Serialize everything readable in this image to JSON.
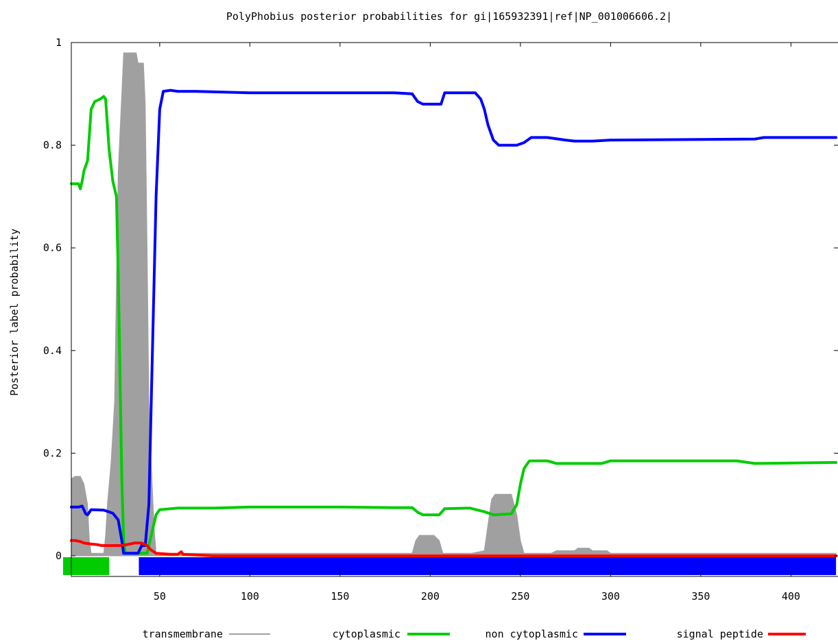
{
  "chart_data": {
    "type": "area",
    "title": "PolyPhobius posterior probabilities for gi|165932391|ref|NP_001006606.2|",
    "xlabel": "",
    "ylabel": "Posterior label probability",
    "xlim": [
      1,
      425
    ],
    "ylim": [
      -0.04,
      1
    ],
    "x_ticks": [
      50,
      100,
      150,
      200,
      250,
      300,
      350,
      400
    ],
    "y_ticks": [
      0,
      0.2,
      0.4,
      0.6,
      0.8,
      1
    ],
    "x_tick_labels": [
      "50",
      "100",
      "150",
      "200",
      "250",
      "300",
      "350",
      "400"
    ],
    "y_tick_labels": [
      "0",
      "0.2",
      "0.4",
      "0.6",
      "0.8",
      "1"
    ],
    "legend_position": "bottom",
    "series": [
      {
        "name": "transmembrane",
        "style": "filled",
        "color": "#a0a0a0",
        "points": [
          [
            1,
            0.15
          ],
          [
            3,
            0.155
          ],
          [
            6,
            0.155
          ],
          [
            8,
            0.14
          ],
          [
            10,
            0.1
          ],
          [
            11,
            0.03
          ],
          [
            12,
            0.005
          ],
          [
            19,
            0.005
          ],
          [
            20,
            0.04
          ],
          [
            21,
            0.1
          ],
          [
            23,
            0.18
          ],
          [
            25,
            0.3
          ],
          [
            27,
            0.75
          ],
          [
            29,
            0.9
          ],
          [
            30,
            0.98
          ],
          [
            37,
            0.98
          ],
          [
            38,
            0.96
          ],
          [
            41,
            0.96
          ],
          [
            42,
            0.88
          ],
          [
            43,
            0.6
          ],
          [
            44,
            0.3
          ],
          [
            45,
            0.2
          ],
          [
            47,
            0.05
          ],
          [
            48,
            0.005
          ],
          [
            190,
            0.005
          ],
          [
            192,
            0.03
          ],
          [
            194,
            0.04
          ],
          [
            202,
            0.04
          ],
          [
            205,
            0.03
          ],
          [
            207,
            0.005
          ],
          [
            223,
            0.005
          ],
          [
            230,
            0.01
          ],
          [
            232,
            0.06
          ],
          [
            234,
            0.11
          ],
          [
            236,
            0.12
          ],
          [
            245,
            0.12
          ],
          [
            248,
            0.08
          ],
          [
            250,
            0.03
          ],
          [
            252,
            0.005
          ],
          [
            267,
            0.005
          ],
          [
            270,
            0.01
          ],
          [
            280,
            0.01
          ],
          [
            282,
            0.015
          ],
          [
            288,
            0.015
          ],
          [
            290,
            0.01
          ],
          [
            298,
            0.01
          ],
          [
            300,
            0.005
          ],
          [
            425,
            0.005
          ]
        ]
      },
      {
        "name": "cytoplasmic",
        "style": "line",
        "color": "#00cc00",
        "points": [
          [
            1,
            0.725
          ],
          [
            5,
            0.725
          ],
          [
            6,
            0.715
          ],
          [
            7,
            0.73
          ],
          [
            8,
            0.75
          ],
          [
            10,
            0.77
          ],
          [
            12,
            0.87
          ],
          [
            14,
            0.885
          ],
          [
            17,
            0.89
          ],
          [
            19,
            0.895
          ],
          [
            20,
            0.89
          ],
          [
            21,
            0.84
          ],
          [
            22,
            0.79
          ],
          [
            24,
            0.73
          ],
          [
            26,
            0.7
          ],
          [
            27,
            0.55
          ],
          [
            28,
            0.35
          ],
          [
            29,
            0.15
          ],
          [
            30,
            0.03
          ],
          [
            31,
            0.005
          ],
          [
            43,
            0.005
          ],
          [
            46,
            0.05
          ],
          [
            48,
            0.08
          ],
          [
            50,
            0.09
          ],
          [
            60,
            0.093
          ],
          [
            80,
            0.093
          ],
          [
            100,
            0.095
          ],
          [
            150,
            0.095
          ],
          [
            180,
            0.094
          ],
          [
            190,
            0.094
          ],
          [
            193,
            0.085
          ],
          [
            196,
            0.08
          ],
          [
            205,
            0.08
          ],
          [
            208,
            0.092
          ],
          [
            222,
            0.093
          ],
          [
            230,
            0.086
          ],
          [
            235,
            0.08
          ],
          [
            245,
            0.082
          ],
          [
            248,
            0.1
          ],
          [
            250,
            0.14
          ],
          [
            252,
            0.17
          ],
          [
            255,
            0.185
          ],
          [
            265,
            0.185
          ],
          [
            270,
            0.18
          ],
          [
            285,
            0.18
          ],
          [
            295,
            0.18
          ],
          [
            300,
            0.185
          ],
          [
            370,
            0.185
          ],
          [
            380,
            0.18
          ],
          [
            425,
            0.182
          ]
        ]
      },
      {
        "name": "non cytoplasmic",
        "style": "line",
        "color": "#0000ff",
        "points": [
          [
            1,
            0.095
          ],
          [
            5,
            0.095
          ],
          [
            7,
            0.097
          ],
          [
            9,
            0.082
          ],
          [
            10,
            0.08
          ],
          [
            12,
            0.09
          ],
          [
            19,
            0.089
          ],
          [
            24,
            0.083
          ],
          [
            27,
            0.07
          ],
          [
            29,
            0.03
          ],
          [
            30,
            0.005
          ],
          [
            38,
            0.005
          ],
          [
            40,
            0.02
          ],
          [
            42,
            0.02
          ],
          [
            44,
            0.1
          ],
          [
            46,
            0.4
          ],
          [
            48,
            0.7
          ],
          [
            50,
            0.87
          ],
          [
            52,
            0.905
          ],
          [
            56,
            0.907
          ],
          [
            60,
            0.905
          ],
          [
            70,
            0.905
          ],
          [
            100,
            0.902
          ],
          [
            150,
            0.902
          ],
          [
            180,
            0.902
          ],
          [
            190,
            0.9
          ],
          [
            193,
            0.885
          ],
          [
            196,
            0.88
          ],
          [
            206,
            0.88
          ],
          [
            208,
            0.902
          ],
          [
            215,
            0.902
          ],
          [
            225,
            0.902
          ],
          [
            228,
            0.89
          ],
          [
            230,
            0.87
          ],
          [
            232,
            0.84
          ],
          [
            235,
            0.81
          ],
          [
            238,
            0.8
          ],
          [
            248,
            0.8
          ],
          [
            252,
            0.805
          ],
          [
            256,
            0.815
          ],
          [
            265,
            0.815
          ],
          [
            275,
            0.81
          ],
          [
            280,
            0.808
          ],
          [
            285,
            0.808
          ],
          [
            290,
            0.808
          ],
          [
            300,
            0.81
          ],
          [
            380,
            0.812
          ],
          [
            385,
            0.815
          ],
          [
            425,
            0.815
          ]
        ]
      },
      {
        "name": "signal peptide",
        "style": "line",
        "color": "#ff0000",
        "points": [
          [
            1,
            0.03
          ],
          [
            3,
            0.03
          ],
          [
            6,
            0.028
          ],
          [
            8,
            0.025
          ],
          [
            12,
            0.023
          ],
          [
            15,
            0.022
          ],
          [
            18,
            0.02
          ],
          [
            22,
            0.02
          ],
          [
            28,
            0.02
          ],
          [
            32,
            0.022
          ],
          [
            36,
            0.025
          ],
          [
            40,
            0.025
          ],
          [
            43,
            0.02
          ],
          [
            45,
            0.012
          ],
          [
            48,
            0.005
          ],
          [
            56,
            0.003
          ],
          [
            60,
            0.003
          ],
          [
            62,
            0.008
          ],
          [
            63,
            0.003
          ],
          [
            80,
            0.0
          ],
          [
            425,
            0.0
          ]
        ]
      }
    ],
    "bottom_bands": [
      {
        "name": "cytoplasmic",
        "color": "#00cc00",
        "x_start": 1,
        "x_end": 22
      },
      {
        "name": "non cytoplasmic",
        "color": "#0000ff",
        "x_start": 43,
        "x_end": 425
      }
    ]
  }
}
